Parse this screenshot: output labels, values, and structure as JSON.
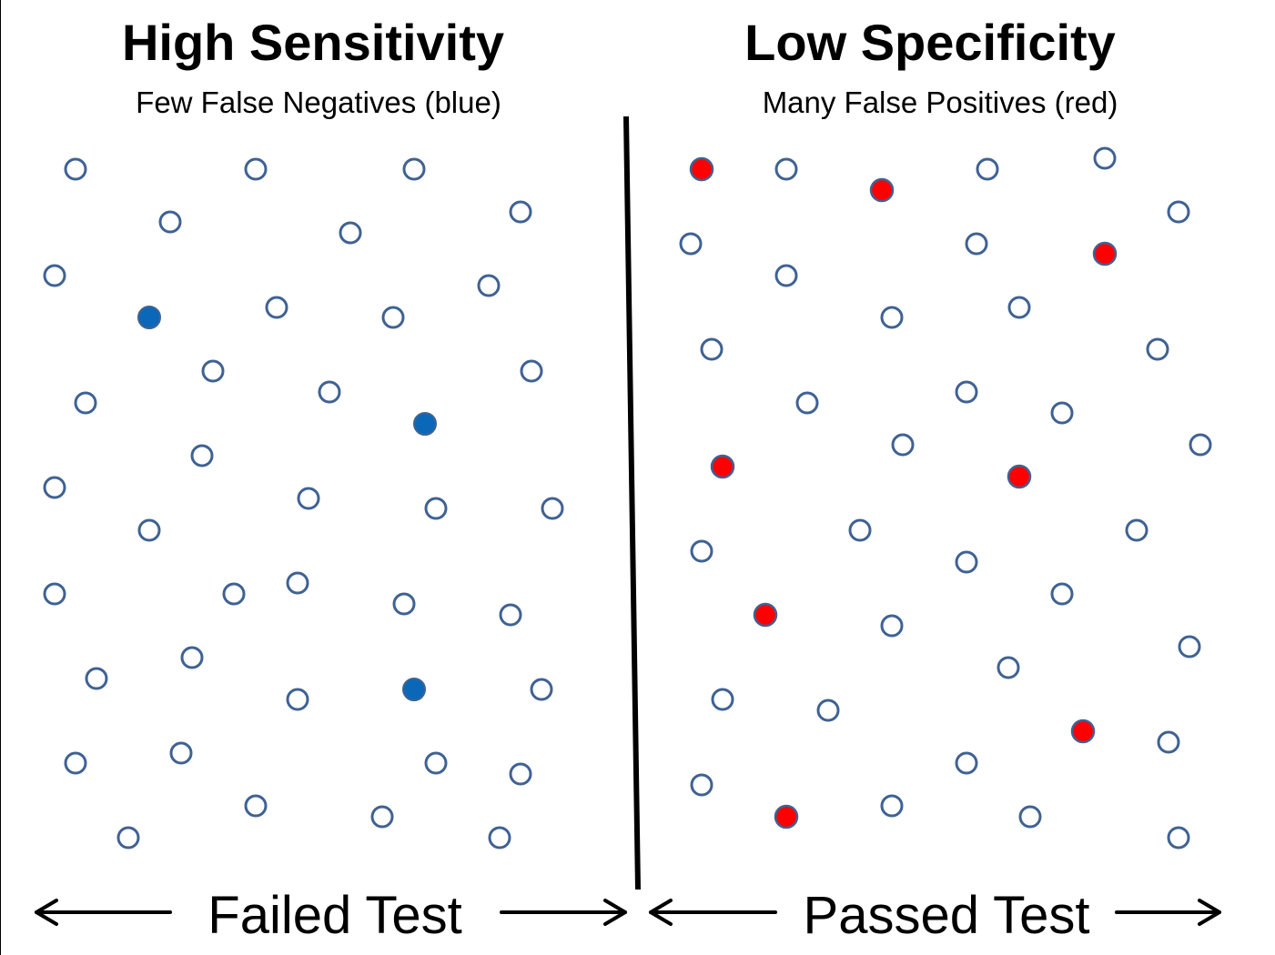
{
  "left_panel": {
    "title": "High Sensitivity",
    "subtitle": "Few False Negatives (blue)",
    "bottom_label": "Failed Test"
  },
  "right_panel": {
    "title": "Low Specificity",
    "subtitle": "Many False Positives (red)",
    "bottom_label": "Passed Test"
  },
  "colors": {
    "circle_outline": "#3f6293",
    "false_negative_fill": "#0b68b8",
    "false_positive_fill": "#ff0000",
    "divider": "#000000",
    "arrow": "#000000"
  }
}
